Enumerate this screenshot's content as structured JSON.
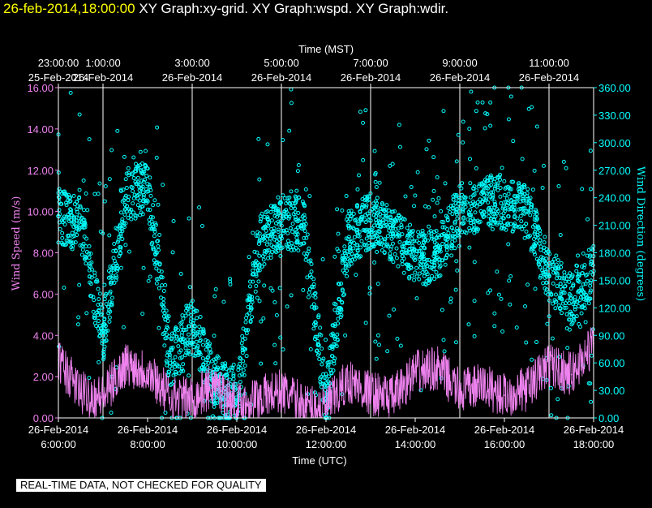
{
  "header": {
    "date_time": "26-feb-2014,18:00:00",
    "graphs": "XY Graph:xy-grid.  XY Graph:wspd.  XY Graph:wdir."
  },
  "footer": {
    "note": "REAL-TIME DATA, NOT CHECKED FOR QUALITY"
  },
  "colors": {
    "speed": "#ee82ee",
    "direction": "#00ffff",
    "axis_left": "#ee82ee",
    "axis_right": "#00ffff",
    "grid": "#ffffff",
    "title_date": "#ffff00"
  },
  "chart_data": {
    "type": "scatter",
    "x_axis_top": {
      "label": "Time (MST)",
      "ticks": [
        {
          "time": "23:00:00",
          "date": "25-Feb-2014"
        },
        {
          "time": "1:00:00",
          "date": "26-Feb-2014"
        },
        {
          "time": "3:00:00",
          "date": "26-Feb-2014"
        },
        {
          "time": "5:00:00",
          "date": "26-Feb-2014"
        },
        {
          "time": "7:00:00",
          "date": "26-Feb-2014"
        },
        {
          "time": "9:00:00",
          "date": "26-Feb-2014"
        },
        {
          "time": "11:00:00",
          "date": "26-Feb-2014"
        }
      ]
    },
    "x_axis_bottom": {
      "label": "Time (UTC)",
      "ticks": [
        {
          "date": "26-Feb-2014",
          "time": "6:00:00"
        },
        {
          "date": "26-Feb-2014",
          "time": "8:00:00"
        },
        {
          "date": "26-Feb-2014",
          "time": "10:00:00"
        },
        {
          "date": "26-Feb-2014",
          "time": "12:00:00"
        },
        {
          "date": "26-Feb-2014",
          "time": "14:00:00"
        },
        {
          "date": "26-Feb-2014",
          "time": "16:00:00"
        },
        {
          "date": "26-Feb-2014",
          "time": "18:00:00"
        }
      ]
    },
    "x_range_utc_hours": [
      6,
      18
    ],
    "y_left": {
      "label": "Wind Speed (m/s)",
      "range": [
        0,
        16
      ],
      "ticks": [
        "0.00",
        "2.00",
        "4.00",
        "6.00",
        "8.00",
        "10.00",
        "12.00",
        "14.00",
        "16.00"
      ]
    },
    "y_right": {
      "label": "Wind Direction (degrees)",
      "range": [
        0,
        360
      ],
      "ticks": [
        "0.00",
        "30.00",
        "60.00",
        "90.00",
        "120.00",
        "150.00",
        "180.00",
        "210.00",
        "240.00",
        "270.00",
        "300.00",
        "330.00",
        "360.00"
      ]
    },
    "grid": "vertical",
    "series": [
      {
        "key": "wspd",
        "style": "line",
        "hours": [
          6,
          6.5,
          7,
          7.5,
          8,
          8.5,
          9,
          9.5,
          10,
          10.5,
          11,
          11.5,
          12,
          12.5,
          13,
          13.5,
          14,
          14.5,
          15,
          15.5,
          16,
          16.5,
          17,
          17.5,
          18
        ],
        "values": [
          2.8,
          1.2,
          1.0,
          2.6,
          2.3,
          1.0,
          0.9,
          1.6,
          0.6,
          1.0,
          1.3,
          0.6,
          0.5,
          1.8,
          1.2,
          1.0,
          2.2,
          2.4,
          1.3,
          1.6,
          1.1,
          1.4,
          2.6,
          2.1,
          3.6
        ]
      },
      {
        "key": "wdir",
        "style": "points",
        "hours": [
          6,
          6.5,
          7,
          7.5,
          8,
          8.5,
          9,
          9.5,
          10,
          10.5,
          11,
          11.5,
          12,
          12.5,
          13,
          13.5,
          14,
          14.5,
          15,
          15.5,
          16,
          16.5,
          17,
          17.5,
          18
        ],
        "values": [
          220,
          210,
          90,
          240,
          255,
          60,
          100,
          40,
          20,
          190,
          215,
          210,
          20,
          195,
          215,
          200,
          175,
          175,
          225,
          235,
          235,
          225,
          155,
          130,
          160
        ]
      }
    ]
  }
}
